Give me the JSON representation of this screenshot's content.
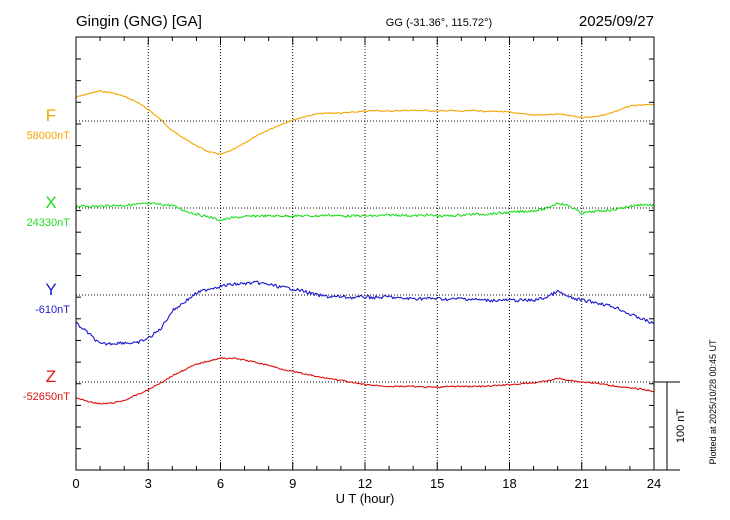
{
  "chart_data": {
    "type": "line",
    "title": "Gingin (GNG)  [GA]",
    "subtitle": "GG (-31.36°, 115.72°)",
    "date": "2025/09/27",
    "xlabel": "U T (hour)",
    "xlim": [
      0,
      24
    ],
    "xticks": [
      "0",
      "3",
      "6",
      "9",
      "12",
      "15",
      "18",
      "21",
      "24"
    ],
    "plotted_note": "Plotted at 2025/10/28 00:45 UT",
    "scale_label": "100 nT",
    "scale_nT": 100,
    "grid": true,
    "series": [
      {
        "name": "F",
        "baseline_label": "58000nT",
        "color": "#f5a500",
        "x": [
          0,
          0.5,
          1,
          1.5,
          2,
          2.5,
          3,
          3.5,
          4,
          4.5,
          5,
          5.5,
          6,
          6.5,
          7,
          7.5,
          8,
          8.5,
          9,
          9.5,
          10,
          10.5,
          11,
          11.5,
          12,
          12.5,
          13,
          13.5,
          14,
          14.5,
          15,
          15.5,
          16,
          16.5,
          17,
          17.5,
          18,
          18.5,
          19,
          19.5,
          20,
          20.5,
          21,
          21.5,
          22,
          22.5,
          23,
          23.5,
          24
        ],
        "values": [
          27,
          31,
          34,
          32,
          28,
          22,
          13,
          2,
          -11,
          -20,
          -28,
          -35,
          -38,
          -33,
          -25,
          -17,
          -10,
          -4,
          1,
          5,
          8,
          9,
          9,
          10,
          11,
          12,
          11,
          12,
          12,
          12,
          11,
          12,
          11,
          12,
          11,
          11,
          10,
          8,
          7,
          7,
          8,
          6,
          4,
          5,
          7,
          12,
          17,
          18,
          19
        ]
      },
      {
        "name": "X",
        "baseline_label": "24330nT",
        "color": "#22dd22",
        "x": [
          0,
          0.5,
          1,
          1.5,
          2,
          2.5,
          3,
          3.5,
          4,
          4.5,
          5,
          5.5,
          6,
          6.5,
          7,
          7.5,
          8,
          8.5,
          9,
          9.5,
          10,
          10.5,
          11,
          11.5,
          12,
          12.5,
          13,
          13.5,
          14,
          14.5,
          15,
          15.5,
          16,
          16.5,
          17,
          17.5,
          18,
          18.5,
          19,
          19.5,
          20,
          20.5,
          21,
          21.5,
          22,
          22.5,
          23,
          23.5,
          24
        ],
        "values": [
          2,
          2,
          2,
          3,
          3,
          4,
          5,
          4,
          3,
          -3,
          -7,
          -10,
          -14,
          -11,
          -10,
          -9,
          -9,
          -9,
          -9,
          -9,
          -9,
          -8,
          -9,
          -9,
          -9,
          -9,
          -8,
          -8,
          -9,
          -8,
          -9,
          -9,
          -8,
          -7,
          -7,
          -6,
          -5,
          -4,
          -3,
          -1,
          6,
          2,
          -6,
          -4,
          -3,
          -1,
          2,
          4,
          3
        ]
      },
      {
        "name": "Y",
        "baseline_label": "-610nT",
        "color": "#1a1acc",
        "x": [
          0,
          0.5,
          1,
          1.5,
          2,
          2.5,
          3,
          3.5,
          4,
          4.5,
          5,
          5.5,
          6,
          6.5,
          7,
          7.5,
          8,
          8.5,
          9,
          9.5,
          10,
          10.5,
          11,
          11.5,
          12,
          12.5,
          13,
          13.5,
          14,
          14.5,
          15,
          15.5,
          16,
          16.5,
          17,
          17.5,
          18,
          18.5,
          19,
          19.5,
          20,
          20.5,
          21,
          21.5,
          22,
          22.5,
          23,
          23.5,
          24
        ],
        "values": [
          -32,
          -43,
          -56,
          -55,
          -54,
          -55,
          -49,
          -39,
          -18,
          -8,
          2,
          7,
          10,
          12,
          13,
          14,
          12,
          9,
          7,
          4,
          0,
          -2,
          -2,
          -3,
          -2,
          -3,
          -2,
          -4,
          -4,
          -4,
          -4,
          -5,
          -4,
          -5,
          -6,
          -6,
          -6,
          -6,
          -6,
          -3,
          4,
          -3,
          -6,
          -8,
          -11,
          -15,
          -22,
          -27,
          -33
        ]
      },
      {
        "name": "Z",
        "baseline_label": "-52650nT",
        "color": "#dd1111",
        "x": [
          0,
          0.5,
          1,
          1.5,
          2,
          2.5,
          3,
          3.5,
          4,
          4.5,
          5,
          5.5,
          6,
          6.5,
          7,
          7.5,
          8,
          8.5,
          9,
          9.5,
          10,
          10.5,
          11,
          11.5,
          12,
          12.5,
          13,
          13.5,
          14,
          14.5,
          15,
          15.5,
          16,
          16.5,
          17,
          17.5,
          18,
          18.5,
          19,
          19.5,
          20,
          20.5,
          21,
          21.5,
          22,
          22.5,
          23,
          23.5,
          24
        ],
        "values": [
          -18,
          -22,
          -25,
          -24,
          -21,
          -15,
          -9,
          -1,
          7,
          14,
          20,
          24,
          27,
          27,
          25,
          22,
          19,
          15,
          12,
          9,
          6,
          4,
          2,
          -1,
          -3,
          -4,
          -5,
          -5,
          -5,
          -6,
          -6,
          -5,
          -5,
          -5,
          -5,
          -4,
          -3,
          -2,
          -1,
          1,
          4,
          2,
          0,
          -1,
          -3,
          -5,
          -7,
          -8,
          -11
        ]
      }
    ]
  }
}
